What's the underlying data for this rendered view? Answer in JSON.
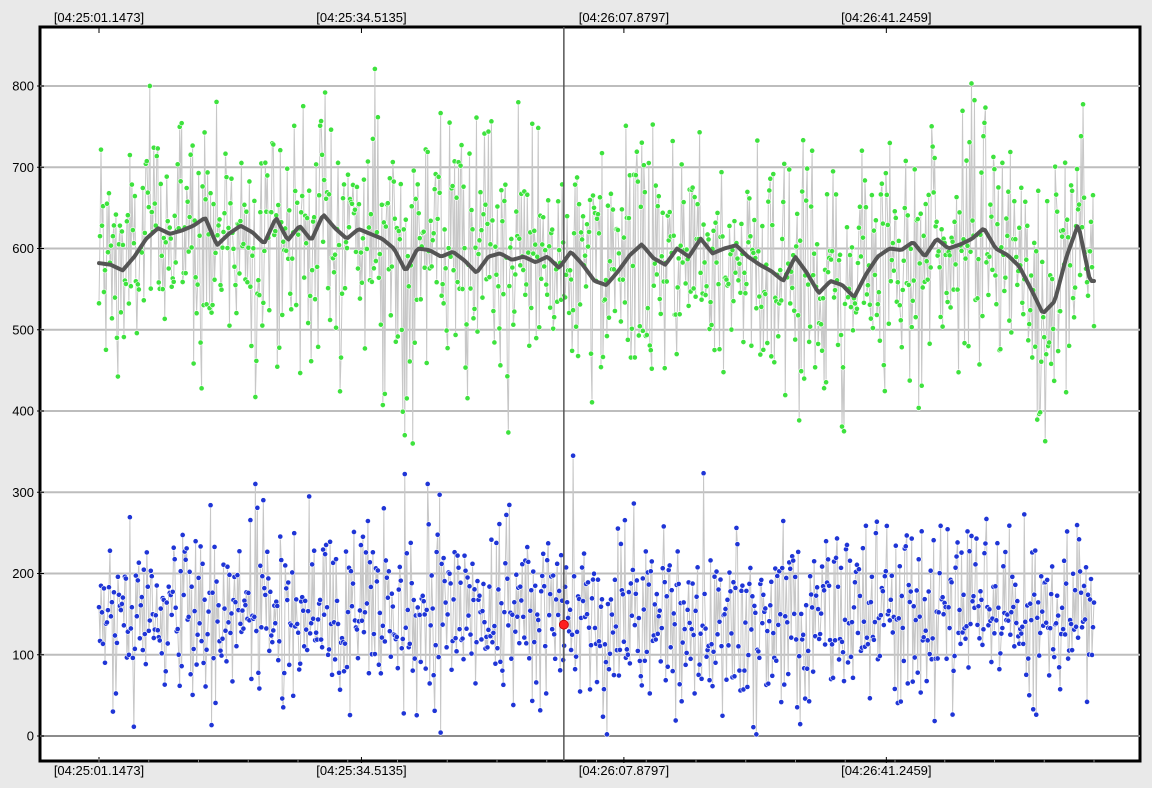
{
  "chart_data": {
    "type": "scatter",
    "title": "",
    "xlabel": "",
    "ylabel": "",
    "x_ticks": [
      "[04:25:01.1473]",
      "[04:25:34.5135]",
      "[04:26:07.8797]",
      "[04:26:41.2459]"
    ],
    "y_ticks": [
      0,
      100,
      200,
      300,
      400,
      500,
      600,
      700,
      800
    ],
    "ylim": [
      -10,
      855
    ],
    "x_range_seconds": [
      0,
      126.5
    ],
    "grid": true,
    "legend": "none",
    "cursor": {
      "time_offset_seconds": 59.1,
      "highlight_value": 137
    },
    "series": [
      {
        "color": "#3ee23e",
        "y_mean": 590,
        "y_spread": 75,
        "y_min": 360,
        "y_max": 840,
        "point_count": 1000,
        "trend": [
          [
            0,
            582
          ],
          [
            1.5,
            580
          ],
          [
            3,
            573
          ],
          [
            4.5,
            590
          ],
          [
            6,
            612
          ],
          [
            7.5,
            625
          ],
          [
            9,
            618
          ],
          [
            10.5,
            622
          ],
          [
            12,
            628
          ],
          [
            13.5,
            638
          ],
          [
            15,
            604
          ],
          [
            16.5,
            618
          ],
          [
            18,
            628
          ],
          [
            19.5,
            620
          ],
          [
            21,
            606
          ],
          [
            22.5,
            638
          ],
          [
            24,
            610
          ],
          [
            25.5,
            628
          ],
          [
            27,
            610
          ],
          [
            28.5,
            642
          ],
          [
            30,
            625
          ],
          [
            31.5,
            612
          ],
          [
            33,
            624
          ],
          [
            34.5,
            618
          ],
          [
            36,
            612
          ],
          [
            37.5,
            600
          ],
          [
            39,
            572
          ],
          [
            40.5,
            600
          ],
          [
            42,
            598
          ],
          [
            43.5,
            590
          ],
          [
            45,
            596
          ],
          [
            46.5,
            585
          ],
          [
            48,
            570
          ],
          [
            49.5,
            590
          ],
          [
            51,
            594
          ],
          [
            52.5,
            586
          ],
          [
            54,
            590
          ],
          [
            55.5,
            583
          ],
          [
            57,
            590
          ],
          [
            58.5,
            576
          ],
          [
            60,
            596
          ],
          [
            61.5,
            580
          ],
          [
            63,
            560
          ],
          [
            64.5,
            555
          ],
          [
            66,
            572
          ],
          [
            67.5,
            592
          ],
          [
            69,
            605
          ],
          [
            70.5,
            588
          ],
          [
            72,
            580
          ],
          [
            73.5,
            600
          ],
          [
            75,
            590
          ],
          [
            76.5,
            612
          ],
          [
            78,
            594
          ],
          [
            79.5,
            600
          ],
          [
            81,
            604
          ],
          [
            82.5,
            590
          ],
          [
            84,
            580
          ],
          [
            85.5,
            572
          ],
          [
            87,
            560
          ],
          [
            88.5,
            590
          ],
          [
            90,
            570
          ],
          [
            91.5,
            545
          ],
          [
            93,
            560
          ],
          [
            94.5,
            555
          ],
          [
            96,
            540
          ],
          [
            97.5,
            568
          ],
          [
            99,
            590
          ],
          [
            100.5,
            600
          ],
          [
            102,
            598
          ],
          [
            103.5,
            608
          ],
          [
            105,
            590
          ],
          [
            106.5,
            612
          ],
          [
            108,
            600
          ],
          [
            109.5,
            605
          ],
          [
            111,
            612
          ],
          [
            112.5,
            625
          ],
          [
            114,
            600
          ],
          [
            115.5,
            592
          ],
          [
            117,
            578
          ],
          [
            118.5,
            550
          ],
          [
            120,
            520
          ],
          [
            121.5,
            535
          ],
          [
            123,
            590
          ],
          [
            124.5,
            630
          ],
          [
            126,
            560
          ]
        ]
      },
      {
        "color": "#1f35d6",
        "y_mean": 150,
        "y_spread": 55,
        "y_min": 2,
        "y_max": 345,
        "point_count": 1000
      }
    ]
  }
}
